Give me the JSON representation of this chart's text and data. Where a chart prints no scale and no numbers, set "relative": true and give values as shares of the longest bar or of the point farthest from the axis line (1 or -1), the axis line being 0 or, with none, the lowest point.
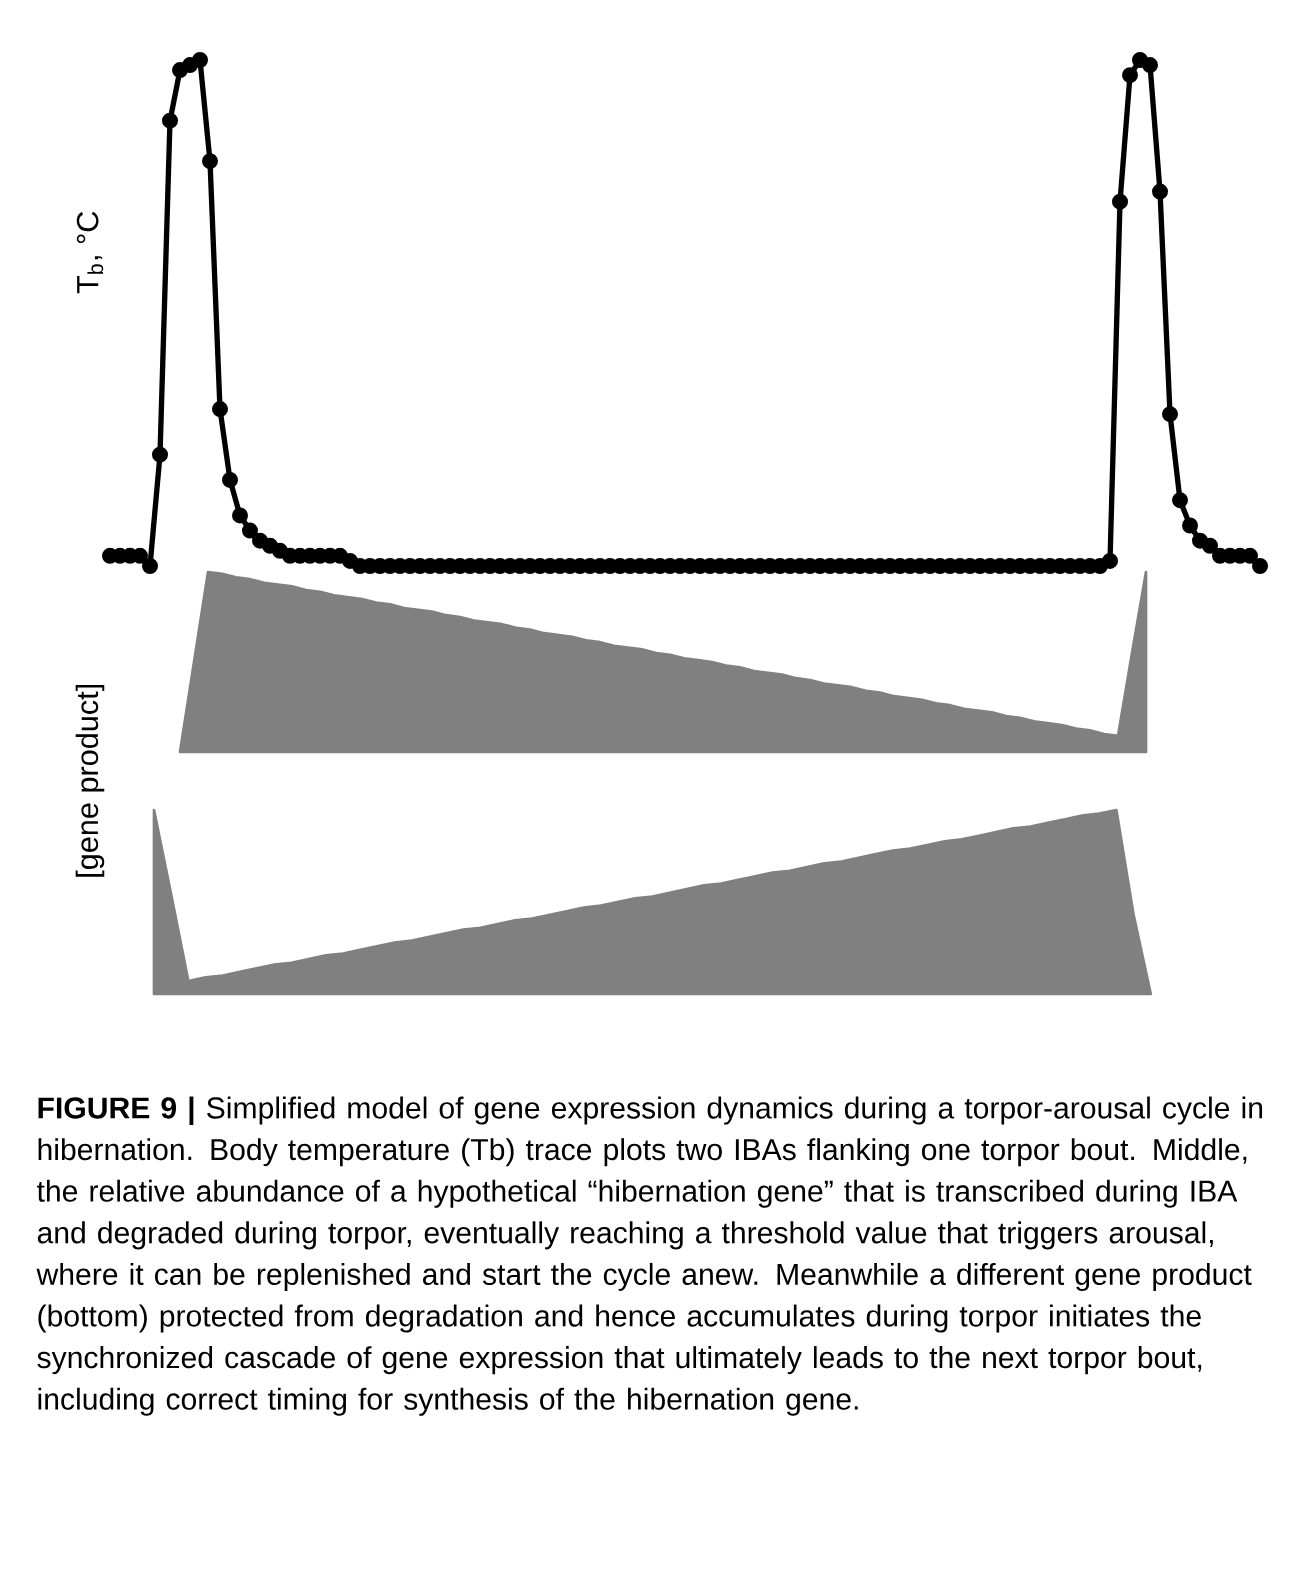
{
  "chart_data": [
    {
      "type": "line",
      "ylabel": "T$_{b}$, °C",
      "relative": true,
      "tick_labels": false,
      "marker": "circle",
      "line_style": "solid",
      "categories": [
        null,
        null,
        null,
        null,
        null,
        null,
        null,
        null,
        null,
        null,
        null,
        null,
        null,
        null,
        null,
        null,
        null,
        null,
        null,
        null,
        null,
        null,
        null,
        null,
        null,
        null,
        null,
        null,
        null,
        null,
        null,
        null,
        null,
        null,
        null,
        null,
        null,
        null,
        null,
        null,
        null,
        null,
        null,
        null,
        null,
        null,
        null,
        null,
        null,
        null,
        null,
        null,
        null,
        null,
        null,
        null,
        null,
        null,
        null,
        null,
        null,
        null,
        null,
        null,
        null,
        null,
        null,
        null,
        null,
        null,
        null,
        null,
        null,
        null,
        null,
        null,
        null,
        null,
        null,
        null,
        null,
        null,
        null,
        null,
        null,
        null,
        null,
        null,
        null,
        null,
        null,
        null,
        null,
        null,
        null,
        null,
        null,
        null,
        null,
        null,
        null,
        null,
        null,
        null,
        null,
        null,
        null,
        null,
        null,
        null,
        null,
        null,
        null,
        null,
        null,
        null
      ],
      "series": [
        {
          "color": "#000000",
          "values": [
            0.02,
            0.02,
            0.02,
            0.02,
            0,
            0.22,
            0.88,
            0.98,
            0.99,
            1.0,
            0.8,
            0.31,
            0.17,
            0.1,
            0.07,
            0.05,
            0.04,
            0.03,
            0.02,
            0.02,
            0.02,
            0.02,
            0.02,
            0.02,
            0.01,
            0,
            0,
            0,
            0,
            0,
            0,
            0,
            0,
            0,
            0,
            0,
            0,
            0,
            0,
            0,
            0,
            0,
            0,
            0,
            0,
            0,
            0,
            0,
            0,
            0,
            0,
            0,
            0,
            0,
            0,
            0,
            0,
            0,
            0,
            0,
            0,
            0,
            0,
            0,
            0,
            0,
            0,
            0,
            0,
            0,
            0,
            0,
            0,
            0,
            0,
            0,
            0,
            0,
            0,
            0,
            0,
            0,
            0,
            0,
            0,
            0,
            0,
            0,
            0,
            0,
            0,
            0,
            0,
            0,
            0,
            0,
            0,
            0,
            0,
            0,
            0.01,
            0.72,
            0.97,
            1.0,
            0.99,
            0.74,
            0.3,
            0.13,
            0.08,
            0.05,
            0.04,
            0.02,
            0.02,
            0.02,
            0.02,
            0
          ]
        }
      ]
    },
    {
      "type": "area",
      "ylabel": "[gene product]",
      "relative": true,
      "tick_labels": false,
      "categories": [
        null,
        null,
        null,
        null,
        null,
        null,
        null,
        null,
        null,
        null,
        null,
        null,
        null,
        null,
        null,
        null,
        null,
        null,
        null,
        null,
        null,
        null,
        null,
        null,
        null,
        null,
        null,
        null,
        null,
        null,
        null,
        null,
        null,
        null,
        null,
        null,
        null,
        null,
        null,
        null,
        null,
        null,
        null,
        null,
        null,
        null,
        null,
        null,
        null,
        null,
        null,
        null,
        null,
        null,
        null,
        null,
        null,
        null,
        null,
        null,
        null,
        null,
        null,
        null,
        null,
        null,
        null,
        null,
        null,
        null
      ],
      "series": [
        {
          "color": "#808080",
          "values": [
            0,
            0.5,
            1.0,
            0.99,
            0.97,
            0.96,
            0.94,
            0.93,
            0.92,
            0.9,
            0.89,
            0.87,
            0.86,
            0.85,
            0.83,
            0.82,
            0.8,
            0.79,
            0.78,
            0.76,
            0.75,
            0.73,
            0.72,
            0.71,
            0.69,
            0.68,
            0.66,
            0.65,
            0.64,
            0.62,
            0.61,
            0.59,
            0.58,
            0.57,
            0.55,
            0.54,
            0.52,
            0.51,
            0.5,
            0.48,
            0.47,
            0.45,
            0.44,
            0.43,
            0.41,
            0.4,
            0.38,
            0.37,
            0.36,
            0.34,
            0.33,
            0.31,
            0.3,
            0.29,
            0.27,
            0.26,
            0.24,
            0.23,
            0.22,
            0.2,
            0.19,
            0.17,
            0.16,
            0.15,
            0.13,
            0.12,
            0.1,
            0.09,
            0.55,
            1.0
          ]
        }
      ]
    },
    {
      "type": "area",
      "relative": true,
      "tick_labels": false,
      "categories": [
        null,
        null,
        null,
        null,
        null,
        null,
        null,
        null,
        null,
        null,
        null,
        null,
        null,
        null,
        null,
        null,
        null,
        null,
        null,
        null,
        null,
        null,
        null,
        null,
        null,
        null,
        null,
        null,
        null,
        null,
        null,
        null,
        null,
        null,
        null,
        null,
        null,
        null,
        null,
        null,
        null,
        null,
        null,
        null,
        null,
        null,
        null,
        null,
        null,
        null,
        null,
        null,
        null,
        null,
        null,
        null,
        null,
        null,
        null
      ],
      "series": [
        {
          "color": "#808080",
          "values": [
            1.0,
            0.54,
            0.07,
            0.09,
            0.1,
            0.12,
            0.14,
            0.16,
            0.17,
            0.19,
            0.21,
            0.22,
            0.24,
            0.26,
            0.28,
            0.29,
            0.31,
            0.33,
            0.35,
            0.36,
            0.38,
            0.4,
            0.41,
            0.43,
            0.45,
            0.47,
            0.48,
            0.5,
            0.52,
            0.53,
            0.55,
            0.57,
            0.59,
            0.6,
            0.62,
            0.64,
            0.66,
            0.67,
            0.69,
            0.71,
            0.72,
            0.74,
            0.76,
            0.78,
            0.79,
            0.81,
            0.83,
            0.84,
            0.86,
            0.88,
            0.9,
            0.91,
            0.93,
            0.95,
            0.97,
            0.98,
            1.0,
            0.43,
            0
          ]
        }
      ],
      "annotations": [
        "**FIGURE 9 |** Simplified model of gene expression dynamics during a torpor-arousal cycle in hibernation. Body temperature (Tb) trace plots two IBAs flanking one torpor bout. Middle, the relative abundance of a hypothetical “hibernation gene” that is transcribed during IBA and degraded during torpor, eventually reaching a threshold value that triggers arousal, where it can be replenished and start the cycle anew. Meanwhile a different gene product (bottom) protected from degradation and hence accumulates during torpor initiates the synchronized cascade of gene expression that ultimately leads to the next torpor bout, including correct timing for synthesis of the hibernation gene."
      ]
    }
  ]
}
